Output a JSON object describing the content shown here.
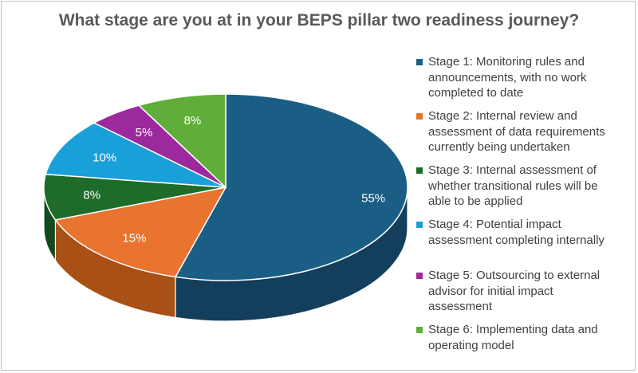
{
  "chart_data": {
    "type": "pie",
    "title": "What stage are you at in your BEPS pillar two readiness journey?",
    "legend_position": "right",
    "slices": [
      {
        "name": "Stage 1: Monitoring rules and announcements, with no work completed to date",
        "value": 55,
        "label": "55%",
        "color": "#1b5e85",
        "side": "#133f5c"
      },
      {
        "name": "Stage 2: Internal review and assessment of data requirements currently being undertaken",
        "value": 15,
        "label": "15%",
        "color": "#e8742f",
        "side": "#a85016"
      },
      {
        "name": "Stage 3: Internal assessment of whether transitional rules will be able to be applied",
        "value": 8,
        "label": "8%",
        "color": "#1e6b2a",
        "side": "#134a1d"
      },
      {
        "name": "Stage 4: Potential impact assessment completing internally",
        "value": 10,
        "label": "10%",
        "color": "#1aa0d8",
        "side": "#117aa6"
      },
      {
        "name": "Stage 5: Outsourcing to external advisor for initial impact assessment",
        "value": 5,
        "label": "5%",
        "color": "#9c2a9e",
        "side": "#6c1c6e"
      },
      {
        "name": "Stage 6: Implementing data and operating model",
        "value": 8,
        "label": "8%",
        "color": "#5fae3a",
        "side": "#417a27"
      }
    ]
  },
  "legend": {
    "items": [
      {
        "lines": [
          "Stage 1: Monitoring rules and",
          "announcements, with no work",
          "completed to date"
        ],
        "color": "#1b5e85"
      },
      {
        "lines": [
          "Stage 2: Internal review and",
          "assessment of data requirements",
          "currently being undertaken"
        ],
        "color": "#e8742f"
      },
      {
        "lines": [
          "Stage 3: Internal assessment of",
          "whether transitional rules will be",
          "able to be applied"
        ],
        "color": "#1e6b2a"
      },
      {
        "lines": [
          "Stage 4: Potential impact",
          "assessment completing internally"
        ],
        "color": "#1aa0d8"
      },
      {
        "lines": [
          "Stage 5: Outsourcing to external",
          "advisor for initial impact",
          "assessment"
        ],
        "color": "#9c2a9e"
      },
      {
        "lines": [
          "Stage 6: Implementing data and",
          "operating model"
        ],
        "color": "#5fae3a"
      }
    ]
  }
}
